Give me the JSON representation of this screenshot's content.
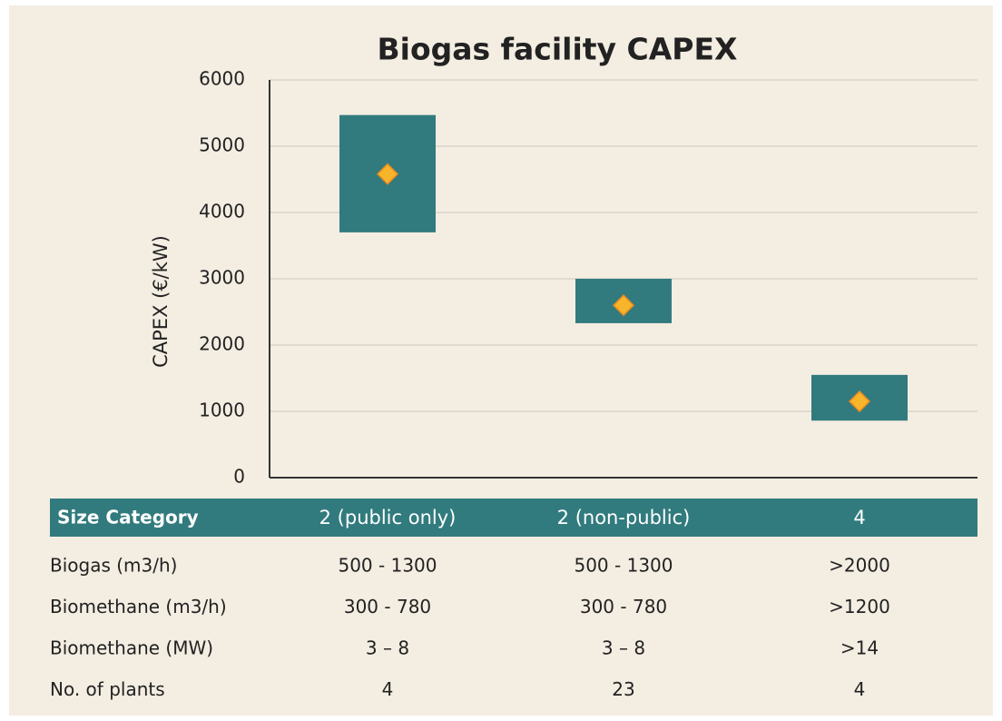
{
  "chart_data": {
    "type": "range",
    "title": "Biogas facility CAPEX",
    "y_label": "CAPEX (€/kW)",
    "categories": [
      "2 (public only)",
      "2 (non-public)",
      "4"
    ],
    "ranges": [
      [
        3700,
        5470
      ],
      [
        2330,
        3000
      ],
      [
        860,
        1550
      ]
    ],
    "means": [
      4580,
      2600,
      1150
    ],
    "color": "#317b7e",
    "mean_color": "#f7b52c",
    "ylim": [
      0,
      6000
    ],
    "yticks": [
      0,
      1000,
      2000,
      3000,
      4000,
      5000,
      6000
    ],
    "grid": true
  },
  "table": {
    "header": "Size Category",
    "rows": [
      {
        "label": "Biogas (m3/h)",
        "values": [
          "500 - 1300",
          "500 - 1300",
          ">2000"
        ]
      },
      {
        "label": "Biomethane (m3/h)",
        "values": [
          "300 - 780",
          "300 - 780",
          ">1200"
        ]
      },
      {
        "label": "Biomethane (MW)",
        "values": [
          "3 – 8",
          "3 – 8",
          ">14"
        ]
      },
      {
        "label": "No. of plants",
        "values": [
          "4",
          "23",
          "4"
        ]
      }
    ]
  }
}
